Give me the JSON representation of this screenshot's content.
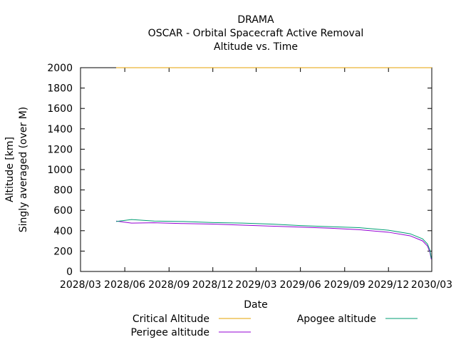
{
  "chart_data": {
    "type": "line",
    "title_lines": [
      "DRAMA",
      "OSCAR - Orbital Spacecraft Active Removal",
      "Altitude vs. Time"
    ],
    "xlabel": "Date",
    "ylabel_lines": [
      "Altitude [km]",
      "Singly averaged (over M)"
    ],
    "xlim": [
      "2028/03",
      "2030/03"
    ],
    "ylim": [
      0,
      2000
    ],
    "x_tick_labels": [
      "2028/03",
      "2028/06",
      "2028/09",
      "2028/12",
      "2029/03",
      "2029/06",
      "2029/09",
      "2029/12",
      "2030/03"
    ],
    "y_ticks": [
      0,
      200,
      400,
      600,
      800,
      1000,
      1200,
      1400,
      1600,
      1800,
      2000
    ],
    "legend_position": "below",
    "series": [
      {
        "name": "Critical Altitude",
        "color": "#e6a000",
        "x": [
          "2028/05/14",
          "2030/03/01"
        ],
        "y": [
          2000,
          2000
        ]
      },
      {
        "name": "Perigee altitude",
        "color": "#9400d3",
        "x": [
          "2028/05/14",
          "2028/06/15",
          "2028/08/01",
          "2028/10/01",
          "2028/12/01",
          "2029/02/01",
          "2029/04/01",
          "2029/06/01",
          "2029/08/01",
          "2029/10/01",
          "2029/12/01",
          "2030/01/15",
          "2030/02/10",
          "2030/02/20",
          "2030/02/25",
          "2030/02/28"
        ],
        "y": [
          495,
          475,
          478,
          470,
          465,
          455,
          445,
          435,
          425,
          410,
          385,
          350,
          300,
          250,
          190,
          120
        ]
      },
      {
        "name": "Apogee altitude",
        "color": "#009e73",
        "x": [
          "2028/05/14",
          "2028/06/15",
          "2028/08/01",
          "2028/10/01",
          "2028/12/01",
          "2029/02/01",
          "2029/04/01",
          "2029/06/01",
          "2029/08/01",
          "2029/10/01",
          "2029/12/01",
          "2030/01/15",
          "2030/02/10",
          "2030/02/20",
          "2030/02/25",
          "2030/02/28"
        ],
        "y": [
          490,
          510,
          495,
          490,
          480,
          475,
          465,
          450,
          440,
          430,
          405,
          370,
          320,
          270,
          210,
          130
        ]
      }
    ]
  }
}
